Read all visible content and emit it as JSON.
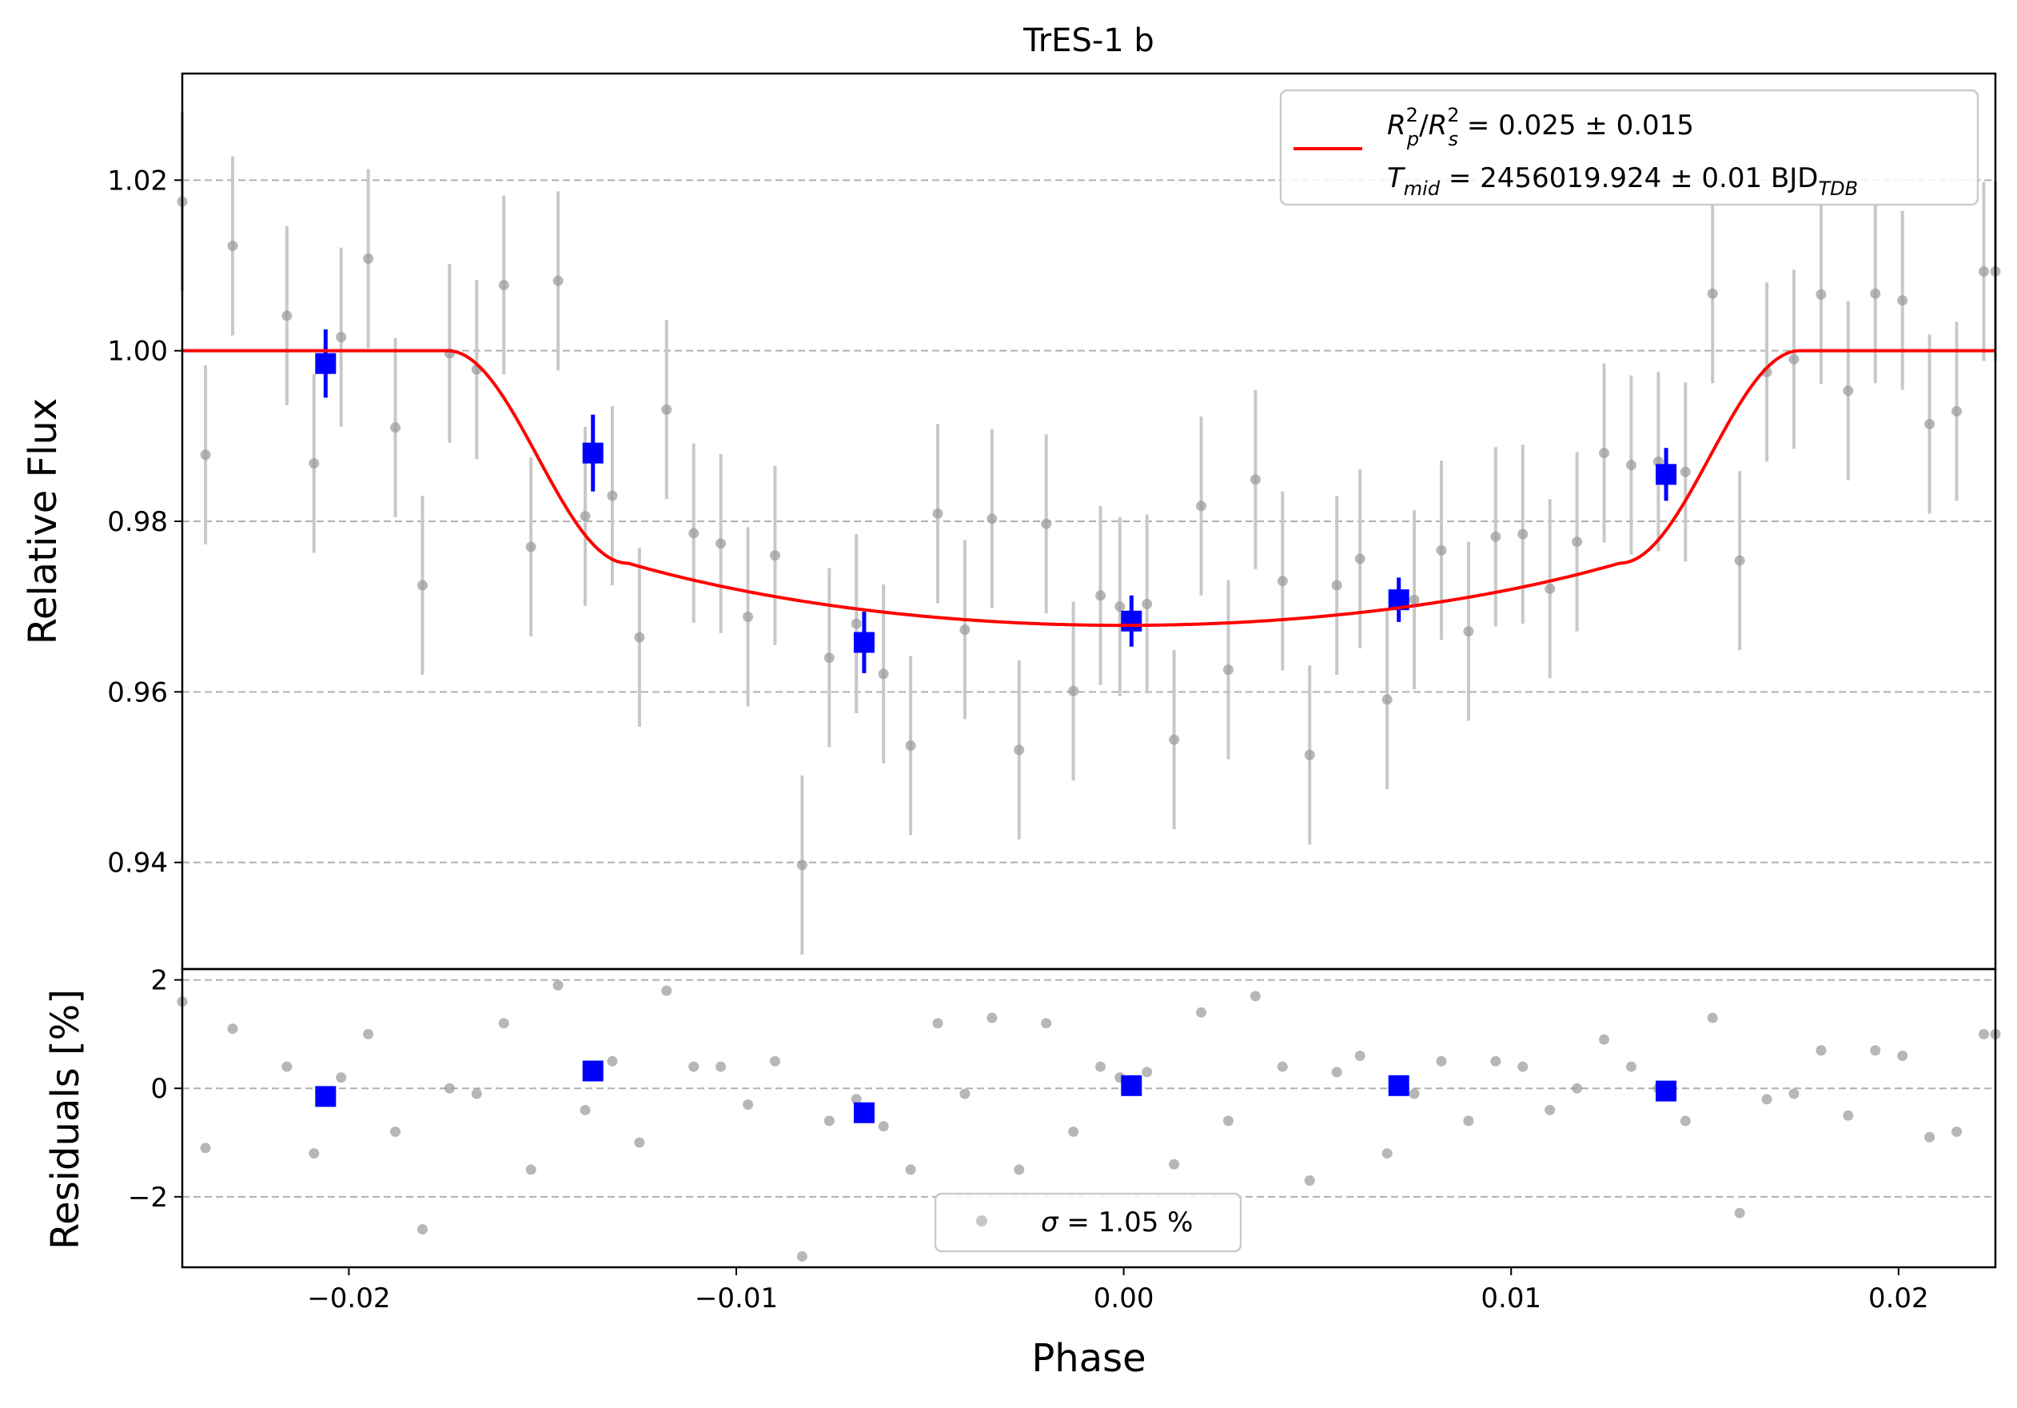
{
  "chart_data": {
    "type": "scatter",
    "title": "TrES-1 b",
    "xlabel": "Phase",
    "ylabel_top": "Relative Flux",
    "ylabel_bottom": "Residuals [%]",
    "xlim": [
      -0.0243,
      0.0225
    ],
    "ylim_top": [
      0.9275,
      1.0325
    ],
    "ylim_bottom": [
      -3.3,
      2.2
    ],
    "x_ticks": [
      -0.02,
      -0.01,
      0.0,
      0.01,
      0.02
    ],
    "x_tick_labels": [
      "−0.02",
      "−0.01",
      "0.00",
      "0.01",
      "0.02"
    ],
    "y_ticks_top": [
      0.94,
      0.96,
      0.98,
      1.0,
      1.02
    ],
    "y_tick_labels_top": [
      "0.94",
      "0.96",
      "0.98",
      "1.00",
      "1.02"
    ],
    "y_ticks_bottom": [
      -2,
      0,
      2
    ],
    "y_tick_labels_bottom": [
      "−2",
      "0",
      "2"
    ],
    "grid": "horizontal dashed",
    "colors": {
      "model": "#ff0000",
      "binned": "#0000ff",
      "raw": "#999999",
      "raw_errorbar": "#c8c8c8",
      "grid": "#b0b0b0"
    },
    "legend_top": {
      "placement": "upper right",
      "entries": [
        {
          "prefix_main": "R",
          "prefix_sub": "p",
          "prefix_sup": "2",
          "slash": "/",
          "prefix2_main": "R",
          "prefix2_sub": "s",
          "prefix2_sup": "2",
          "text": " = 0.025 ± 0.015"
        },
        {
          "prefix_main": "T",
          "prefix_sub": "mid",
          "text": " = 2456019.924 ± 0.01 BJD",
          "suffix_sub": "TDB"
        }
      ]
    },
    "legend_bottom": {
      "placement": "lower center",
      "sigma_symbol": "σ",
      "text": " = 1.05 %"
    },
    "model": {
      "depth": 0.0322,
      "t_contact_outer": 0.01745,
      "t_contact_inner": 0.0128,
      "limb_edge": 0.0202
    },
    "raw_points": {
      "x": [
        -0.0243,
        -0.0237,
        -0.023,
        -0.0216,
        -0.0209,
        -0.0202,
        -0.0195,
        -0.0188,
        -0.0181,
        -0.0174,
        -0.0167,
        -0.016,
        -0.0153,
        -0.0146,
        -0.0139,
        -0.0132,
        -0.0125,
        -0.0118,
        -0.0111,
        -0.0104,
        -0.0097,
        -0.009,
        -0.0083,
        -0.0076,
        -0.0069,
        -0.0062,
        -0.0055,
        -0.0048,
        -0.0041,
        -0.0034,
        -0.0027,
        -0.002,
        -0.0013,
        -0.0006,
        -0.0001,
        0.0006,
        0.0013,
        0.002,
        0.0027,
        0.0034,
        0.0041,
        0.0048,
        0.0055,
        0.0061,
        0.0068,
        0.0075,
        0.0082,
        0.0089,
        0.0096,
        0.0103,
        0.011,
        0.0117,
        0.0124,
        0.0131,
        0.0138,
        0.0145,
        0.0152,
        0.0159,
        0.0166,
        0.0173,
        0.018,
        0.0187,
        0.0194,
        0.0201,
        0.0208,
        0.0215,
        0.0222,
        0.0225
      ],
      "y": [
        1.0175,
        0.9878,
        1.0123,
        1.0041,
        0.9868,
        1.0016,
        1.0108,
        0.991,
        0.9725,
        0.9997,
        0.9978,
        1.0077,
        0.977,
        1.0082,
        0.9806,
        0.983,
        0.9664,
        0.9931,
        0.9786,
        0.9774,
        0.9688,
        0.976,
        0.9397,
        0.964,
        0.968,
        0.9621,
        0.9537,
        0.9809,
        0.9673,
        0.9803,
        0.9532,
        0.9797,
        0.9601,
        0.9713,
        0.97,
        0.9703,
        0.9544,
        0.9818,
        0.9626,
        0.9849,
        0.973,
        0.9526,
        0.9725,
        0.9756,
        0.9591,
        0.9708,
        0.9766,
        0.9671,
        0.9782,
        0.9785,
        0.9721,
        0.9776,
        0.988,
        0.9866,
        0.987,
        0.9858,
        1.0067,
        0.9754,
        0.9975,
        0.999,
        1.0066,
        0.9953,
        1.0067,
        1.0059,
        0.9914,
        0.9929,
        1.0093,
        1.0093
      ],
      "err": 0.0105,
      "residuals": [
        1.6,
        -1.1,
        1.1,
        0.4,
        -1.2,
        0.2,
        1.0,
        -0.8,
        -2.6,
        -0.0,
        -0.1,
        1.2,
        -1.5,
        1.9,
        -0.4,
        0.5,
        -1.0,
        1.8,
        0.4,
        0.4,
        -0.3,
        0.5,
        -3.1,
        -0.6,
        -0.2,
        -0.7,
        -1.5,
        1.2,
        -0.1,
        1.3,
        -1.5,
        1.2,
        -0.8,
        0.4,
        0.2,
        0.3,
        -1.4,
        1.4,
        -0.6,
        1.7,
        0.4,
        -1.7,
        0.3,
        0.6,
        -1.2,
        -0.1,
        0.5,
        -0.6,
        0.5,
        0.4,
        -0.4,
        0.0,
        0.9,
        0.4,
        0.0,
        -0.6,
        1.3,
        -2.3,
        -0.2,
        -0.1,
        0.7,
        -0.5,
        0.7,
        0.6,
        -0.9,
        -0.8,
        1.0,
        1.0
      ]
    },
    "binned_points": {
      "x": [
        -0.0206,
        -0.0137,
        -0.0067,
        0.0002,
        0.0071,
        0.014
      ],
      "y": [
        0.9985,
        0.988,
        0.9658,
        0.9683,
        0.9708,
        0.9855
      ],
      "err": [
        0.004,
        0.0045,
        0.0036,
        0.003,
        0.0026,
        0.0031
      ],
      "residuals": [
        -0.15,
        0.32,
        -0.45,
        0.05,
        0.05,
        -0.05
      ]
    }
  }
}
